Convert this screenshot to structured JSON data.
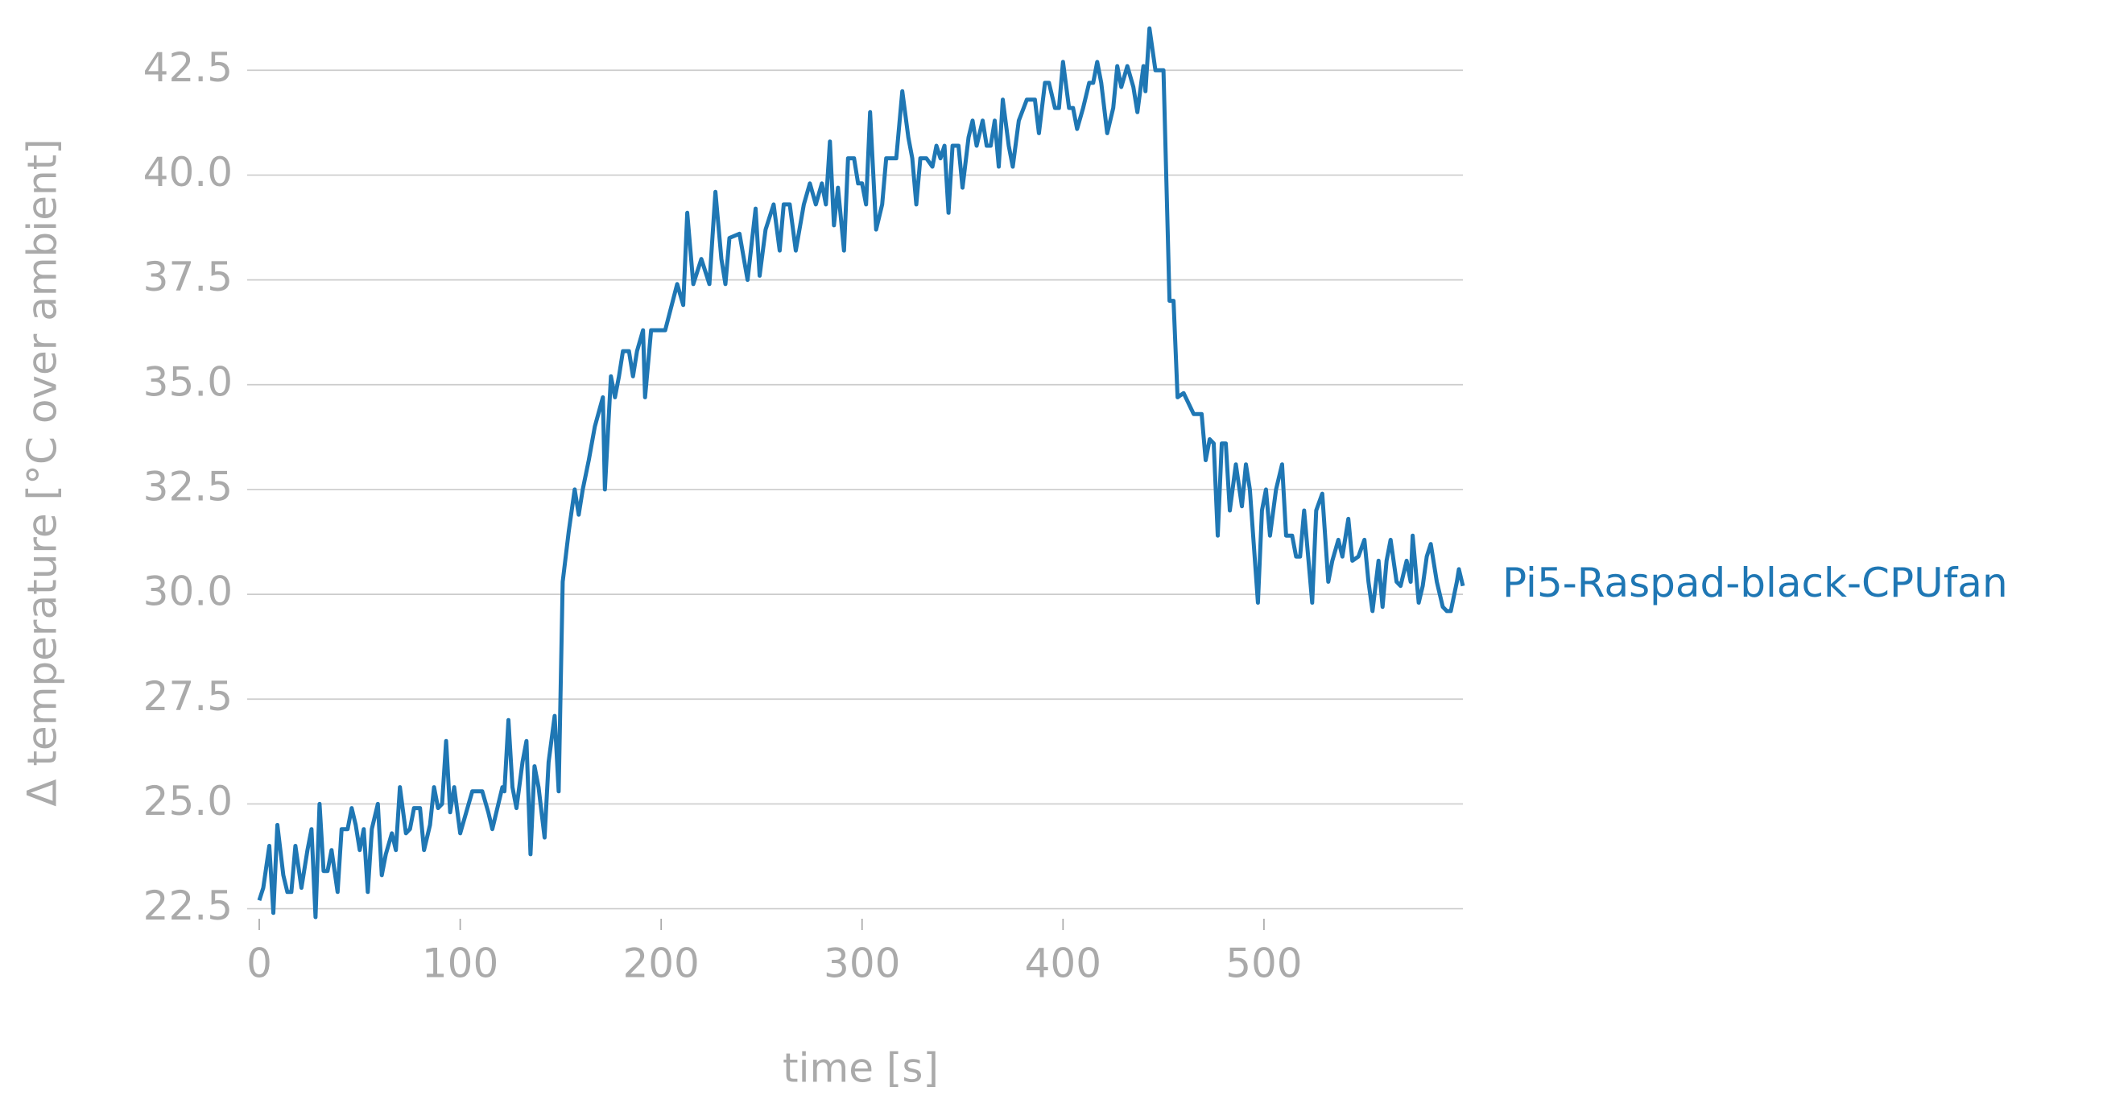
{
  "chart_data": {
    "type": "line",
    "xlabel": "time [s]",
    "ylabel": "Δ temperature [°C over ambient]",
    "x": [
      0,
      2,
      5,
      7,
      9,
      12,
      14,
      16,
      18,
      21,
      24,
      26,
      28,
      30,
      32,
      34,
      36,
      39,
      41,
      44,
      46,
      48,
      50,
      52,
      54,
      56,
      59,
      61,
      63,
      66,
      68,
      70,
      73,
      75,
      77,
      80,
      82,
      85,
      87,
      89,
      91,
      93,
      95,
      97,
      100,
      103,
      106,
      108,
      111,
      114,
      116,
      118,
      121,
      122,
      124,
      126,
      128,
      131,
      133,
      135,
      137,
      139,
      142,
      144,
      147,
      149,
      151,
      154,
      157,
      159,
      161,
      164,
      167,
      171,
      172,
      175,
      177,
      179,
      181,
      184,
      186,
      188,
      191,
      192,
      195,
      202,
      208,
      211,
      213,
      216,
      220,
      224,
      227,
      230,
      232,
      234,
      239,
      243,
      247,
      249,
      252,
      256,
      259,
      261,
      264,
      267,
      271,
      274,
      277,
      280,
      282,
      284,
      286,
      288,
      291,
      293,
      296,
      298,
      300,
      302,
      304,
      307,
      310,
      312,
      317,
      320,
      323,
      325,
      327,
      329,
      332,
      335,
      337,
      339,
      341,
      343,
      345,
      348,
      350,
      353,
      355,
      357,
      360,
      362,
      364,
      366,
      368,
      370,
      373,
      375,
      378,
      382,
      386,
      388,
      391,
      393,
      396,
      398,
      400,
      403,
      405,
      407,
      410,
      413,
      415,
      417,
      419,
      422,
      425,
      427,
      429,
      432,
      435,
      437,
      440,
      441,
      443,
      446,
      450,
      453,
      455,
      457,
      460,
      462,
      465,
      469,
      471,
      473,
      475,
      477,
      479,
      481,
      483,
      486,
      489,
      491,
      493,
      497,
      499,
      501,
      503,
      506,
      509,
      511,
      514,
      516,
      518,
      520,
      522,
      524,
      526,
      529,
      532,
      534,
      537,
      539,
      542,
      544,
      547,
      550,
      552,
      554,
      557,
      559,
      561,
      563,
      566,
      568,
      571,
      573,
      574,
      577,
      579,
      581,
      583,
      586,
      589,
      591,
      593,
      596,
      597,
      599
    ],
    "series": [
      {
        "name": "Pi5-Raspad-black-CPUfan",
        "color": "#1f77b4",
        "values": [
          22.7,
          23.0,
          24.0,
          22.4,
          24.5,
          23.3,
          22.9,
          22.9,
          24.0,
          23.0,
          23.9,
          24.4,
          22.3,
          25.0,
          23.4,
          23.4,
          23.9,
          22.9,
          24.4,
          24.4,
          24.9,
          24.5,
          23.9,
          24.4,
          22.9,
          24.4,
          25.0,
          23.3,
          23.8,
          24.3,
          23.9,
          25.4,
          24.3,
          24.4,
          24.9,
          24.9,
          23.9,
          24.5,
          25.4,
          24.9,
          25.0,
          26.5,
          24.8,
          25.4,
          24.3,
          24.8,
          25.3,
          25.3,
          25.3,
          24.8,
          24.4,
          24.8,
          25.4,
          25.3,
          27.0,
          25.4,
          24.9,
          26.0,
          26.5,
          23.8,
          25.9,
          25.4,
          24.2,
          26.0,
          27.1,
          25.3,
          30.3,
          31.5,
          32.5,
          31.9,
          32.5,
          33.2,
          34.0,
          34.7,
          32.5,
          35.2,
          34.7,
          35.2,
          35.8,
          35.8,
          35.2,
          35.8,
          36.3,
          34.7,
          36.3,
          36.3,
          37.4,
          36.9,
          39.1,
          37.4,
          38.0,
          37.4,
          39.6,
          38.0,
          37.4,
          38.5,
          38.6,
          37.5,
          39.2,
          37.6,
          38.7,
          39.3,
          38.2,
          39.3,
          39.3,
          38.2,
          39.3,
          39.8,
          39.3,
          39.8,
          39.3,
          40.8,
          38.8,
          39.7,
          38.2,
          40.4,
          40.4,
          39.8,
          39.8,
          39.3,
          41.5,
          38.7,
          39.3,
          40.4,
          40.4,
          42.0,
          40.9,
          40.4,
          39.3,
          40.4,
          40.4,
          40.2,
          40.7,
          40.4,
          40.7,
          39.1,
          40.7,
          40.7,
          39.7,
          40.9,
          41.3,
          40.7,
          41.3,
          40.7,
          40.7,
          41.3,
          40.2,
          41.8,
          40.7,
          40.2,
          41.3,
          41.8,
          41.8,
          41.0,
          42.2,
          42.2,
          41.6,
          41.6,
          42.7,
          41.6,
          41.6,
          41.1,
          41.6,
          42.2,
          42.2,
          42.7,
          42.2,
          41.0,
          41.6,
          42.6,
          42.1,
          42.6,
          42.1,
          41.5,
          42.6,
          42.0,
          43.5,
          42.5,
          42.5,
          37.0,
          37.0,
          34.7,
          34.8,
          34.6,
          34.3,
          34.3,
          33.2,
          33.7,
          33.6,
          31.4,
          33.6,
          33.6,
          32.0,
          33.1,
          32.1,
          33.1,
          32.5,
          29.8,
          32.0,
          32.5,
          31.4,
          32.5,
          33.1,
          31.4,
          31.4,
          30.9,
          30.9,
          32.0,
          30.9,
          29.8,
          32.0,
          32.4,
          30.3,
          30.8,
          31.3,
          30.9,
          31.8,
          30.8,
          30.9,
          31.3,
          30.3,
          29.6,
          30.8,
          29.7,
          30.8,
          31.3,
          30.3,
          30.2,
          30.8,
          30.3,
          31.4,
          29.8,
          30.2,
          30.9,
          31.2,
          30.3,
          29.7,
          29.6,
          29.6,
          30.3,
          30.6,
          30.2
        ]
      }
    ],
    "xlim": [
      0,
      599
    ],
    "xticks": [
      0,
      100,
      200,
      300,
      400,
      500
    ],
    "ylim": [
      22.3,
      43.6
    ],
    "yticks": [
      22.5,
      {
        "value": 25,
        "label": "25.0"
      },
      27.5,
      {
        "value": 30,
        "label": "30.0"
      },
      32.5,
      {
        "value": 35,
        "label": "35.0"
      },
      37.5,
      {
        "value": 40,
        "label": "40.0"
      },
      42.5
    ],
    "grid": true
  }
}
